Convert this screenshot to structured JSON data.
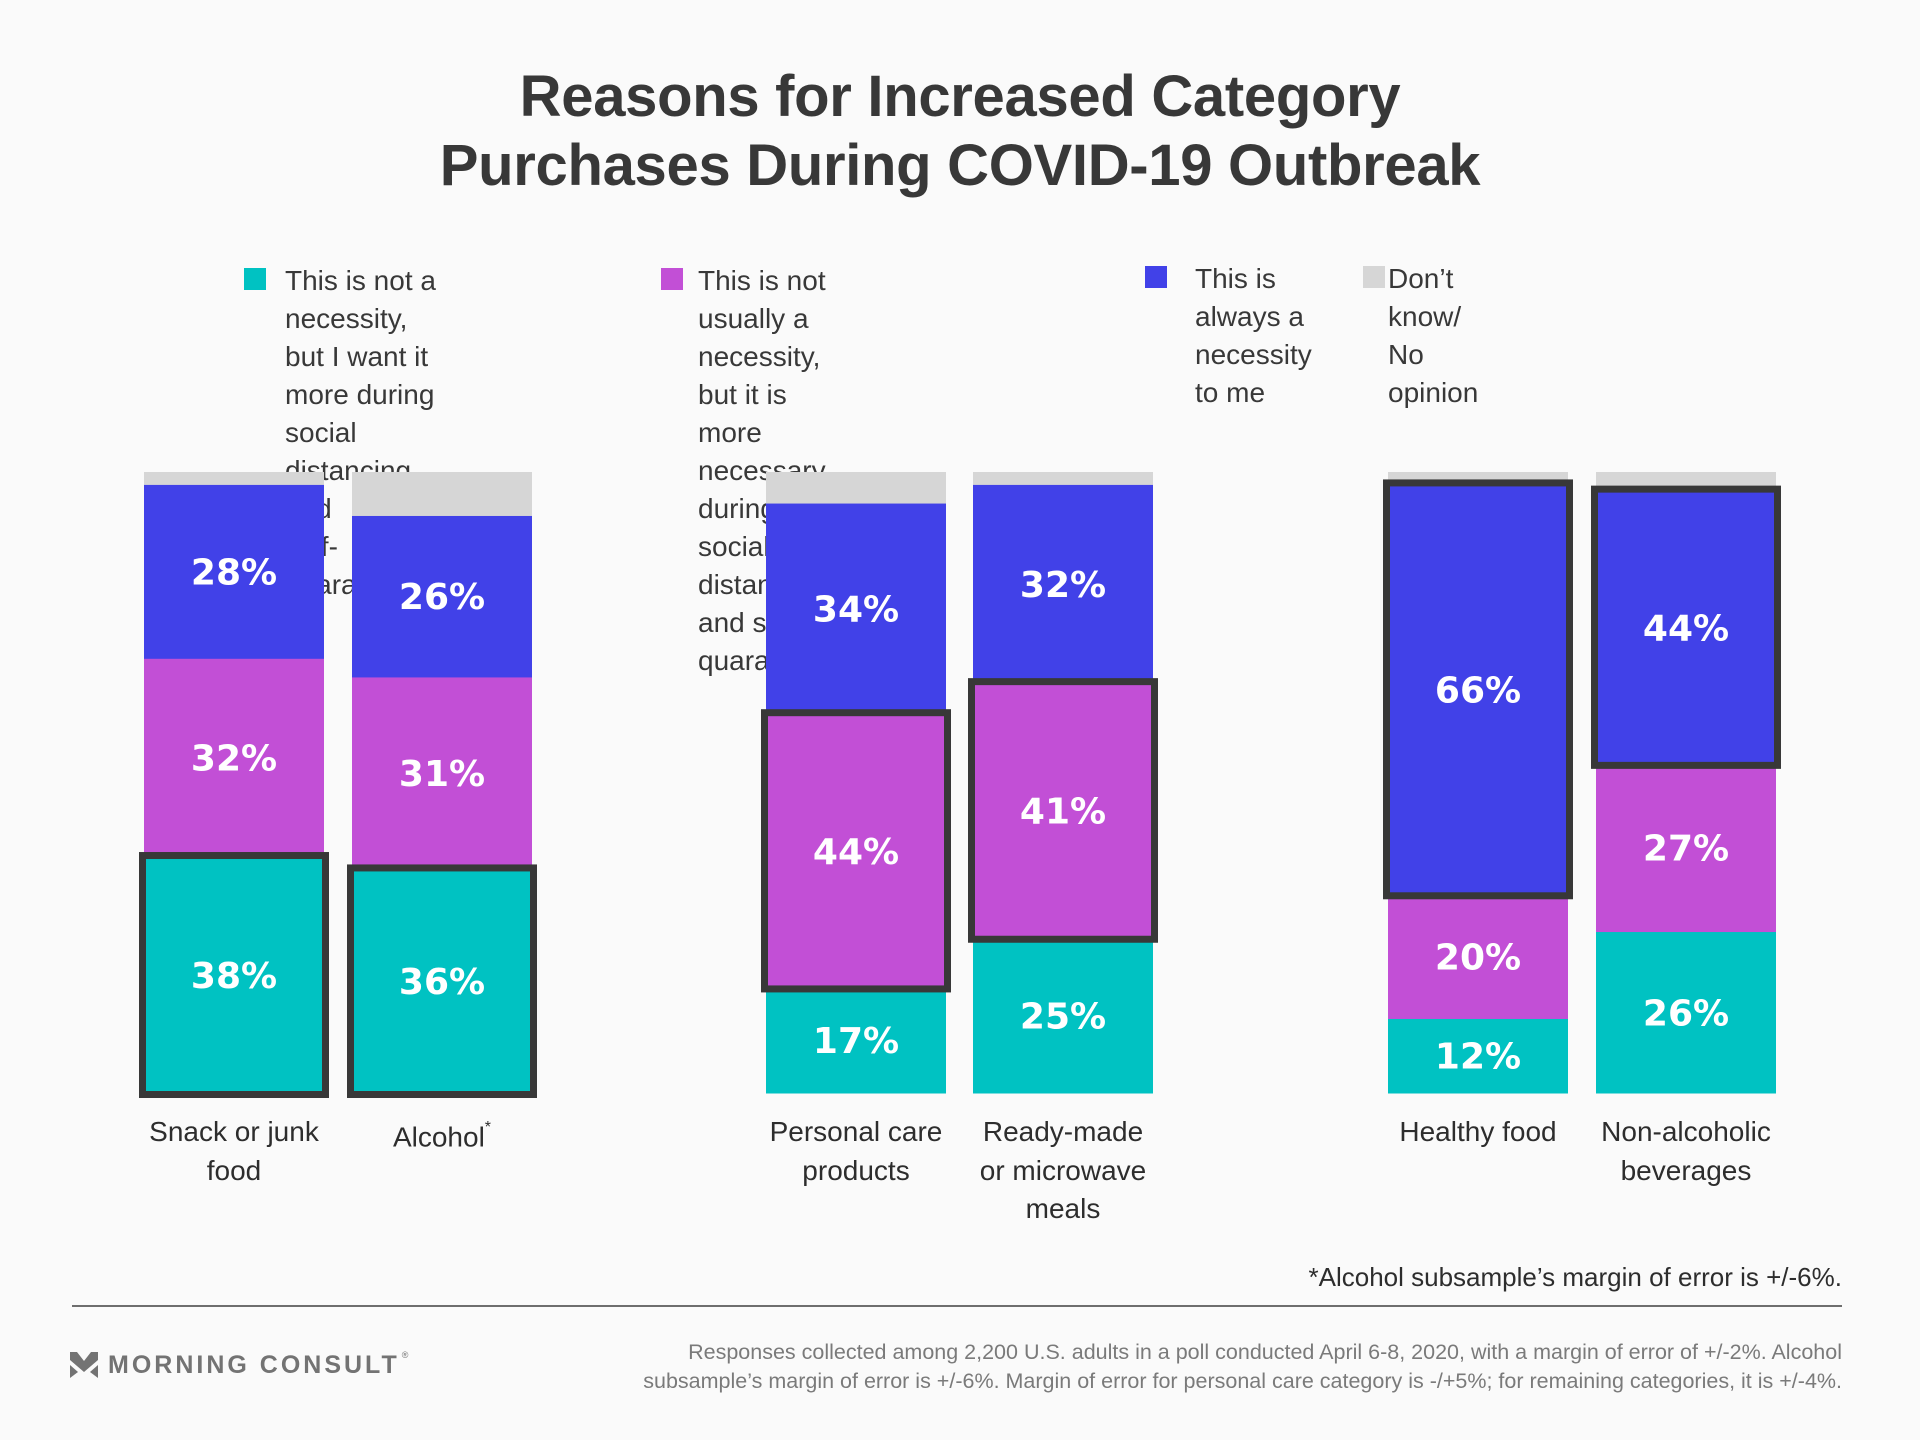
{
  "title": {
    "line1": "Reasons for Increased Category",
    "line2": "Purchases During COVID-19 Outbreak"
  },
  "legend": [
    {
      "label": "This is not a necessity,\nbut I want it more during\nsocial distancing and\nself-quarantining",
      "color": "#00c2c2",
      "key": "want_more"
    },
    {
      "label": "This is not usually a necessity,\nbut it is more necessary\nduring social distancing\nand self-quarantining",
      "color": "#c24fd6",
      "key": "more_necessary"
    },
    {
      "label": "This is always a\nnecessity to me",
      "color": "#4141e8",
      "key": "always_necessity"
    },
    {
      "label": "Don’t know/\nNo opinion",
      "color": "#d6d6d6",
      "key": "dont_know"
    }
  ],
  "chart_data": {
    "type": "bar",
    "stacked": true,
    "orientation": "vertical",
    "title": "Reasons for Increased Category Purchases During COVID-19 Outbreak",
    "xlabel": "",
    "ylabel": "",
    "ylim": [
      0,
      100
    ],
    "unit": "%",
    "grid": false,
    "legend_position": "top",
    "groups": [
      [
        "Snack or junk food",
        "Alcohol"
      ],
      [
        "Personal care products",
        "Ready-made or microwave meals"
      ],
      [
        "Healthy food",
        "Non-alcoholic beverages"
      ]
    ],
    "categories": [
      {
        "label": "Snack or junk\nfood",
        "note": ""
      },
      {
        "label": "Alcohol",
        "note": "*"
      },
      {
        "label": "Personal care\nproducts",
        "note": ""
      },
      {
        "label": "Ready-made\nor microwave\nmeals",
        "note": ""
      },
      {
        "label": "Healthy food",
        "note": ""
      },
      {
        "label": "Non-alcoholic\nbeverages",
        "note": ""
      }
    ],
    "series": [
      {
        "name": "This is not a necessity, but I want it more during social distancing and self-quarantining",
        "color": "#00c2c2",
        "values": [
          38,
          36,
          17,
          25,
          12,
          26
        ]
      },
      {
        "name": "This is not usually a necessity, but it is more necessary during social distancing and self-quarantining",
        "color": "#c24fd6",
        "values": [
          32,
          31,
          44,
          41,
          20,
          27
        ]
      },
      {
        "name": "This is always a necessity to me",
        "color": "#4141e8",
        "values": [
          28,
          26,
          34,
          32,
          66,
          44
        ]
      },
      {
        "name": "Don’t know/No opinion",
        "color": "#d6d6d6",
        "values": [
          2,
          7,
          5,
          2,
          2,
          3
        ]
      }
    ],
    "data_labels": [
      [
        "38%",
        "36%",
        "17%",
        "25%",
        "12%",
        "26%"
      ],
      [
        "32%",
        "31%",
        "44%",
        "41%",
        "20%",
        "27%"
      ],
      [
        "28%",
        "26%",
        "34%",
        "32%",
        "66%",
        "44%"
      ],
      [
        "",
        "",
        "",
        "",
        "",
        ""
      ]
    ],
    "highlighted_series_index": [
      0,
      0,
      1,
      1,
      2,
      2
    ]
  },
  "footnote": "*Alcohol subsample’s margin of error is +/-6%.",
  "brand": {
    "name": "MORNING CONSULT",
    "registered_mark": "®"
  },
  "source": "Responses collected among 2,200 U.S. adults in a poll conducted April 6-8, 2020, with a margin of error of +/-2%. Alcohol\nsubsample’s margin of error is +/-6%. Margin of error for personal care category is -/+5%; for remaining categories, it is +/-4%.",
  "colors": {
    "text": "#383838",
    "highlight_border": "#383838",
    "muted_text": "#7a7a7a",
    "background": "#fafafa"
  }
}
